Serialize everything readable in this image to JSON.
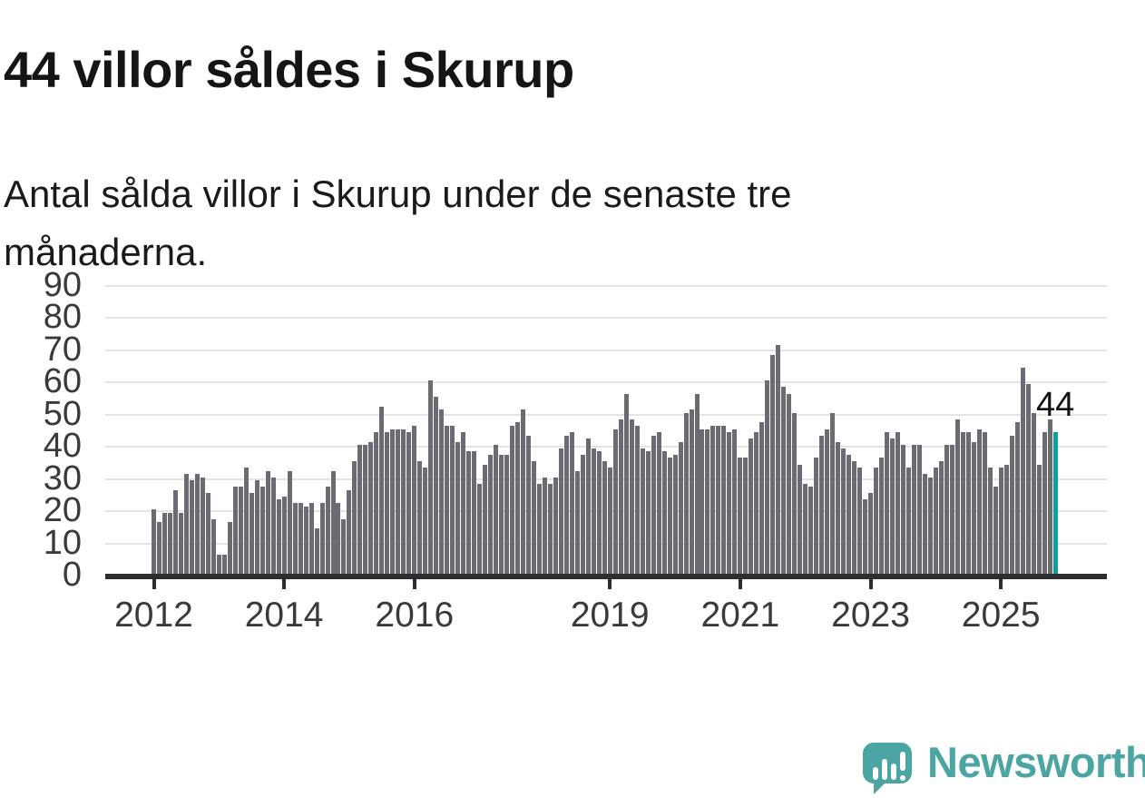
{
  "header": {
    "title": "44 villor såldes i Skurup",
    "subtitle_lines": [
      "Antal sålda villor i Skurup under de senaste tre",
      "månaderna."
    ]
  },
  "chart_data": {
    "type": "bar",
    "title": "44 villor såldes i Skurup",
    "xlabel": "",
    "ylabel": "",
    "unit": "villor (rolling 3-month count)",
    "frequency": "monthly",
    "start_month": "2012-01",
    "end_month": "2025-11",
    "ylim": [
      0,
      90
    ],
    "grid": "horizontal",
    "y_ticks": [
      0,
      10,
      20,
      30,
      40,
      50,
      60,
      70,
      80,
      90
    ],
    "x_ticks": [
      {
        "label": "2012",
        "month_index": 0
      },
      {
        "label": "2014",
        "month_index": 24
      },
      {
        "label": "2016",
        "month_index": 48
      },
      {
        "label": "2019",
        "month_index": 84
      },
      {
        "label": "2021",
        "month_index": 108
      },
      {
        "label": "2023",
        "month_index": 132
      },
      {
        "label": "2025",
        "month_index": 156
      }
    ],
    "values": [
      20,
      16,
      19,
      19,
      26,
      19,
      31,
      29,
      31,
      30,
      25,
      17,
      6,
      6,
      16,
      27,
      27,
      33,
      25,
      29,
      27,
      32,
      30,
      23,
      24,
      32,
      22,
      22,
      21,
      22,
      14,
      22,
      27,
      32,
      22,
      17,
      26,
      35,
      40,
      40,
      41,
      44,
      52,
      44,
      45,
      45,
      45,
      44,
      46,
      35,
      33,
      60,
      55,
      51,
      46,
      46,
      41,
      44,
      38,
      38,
      28,
      34,
      37,
      40,
      37,
      37,
      46,
      47,
      51,
      43,
      35,
      28,
      30,
      28,
      30,
      39,
      43,
      44,
      32,
      37,
      42,
      39,
      38,
      35,
      33,
      45,
      48,
      56,
      48,
      46,
      39,
      38,
      43,
      44,
      38,
      36,
      37,
      41,
      50,
      51,
      56,
      45,
      45,
      46,
      46,
      46,
      44,
      45,
      36,
      36,
      42,
      44,
      47,
      60,
      68,
      71,
      58,
      56,
      50,
      34,
      28,
      27,
      36,
      43,
      45,
      50,
      41,
      39,
      37,
      35,
      33,
      23,
      25,
      33,
      36,
      44,
      42,
      44,
      40,
      33,
      40,
      40,
      31,
      30,
      33,
      35,
      40,
      40,
      48,
      44,
      44,
      41,
      45,
      44,
      33,
      27,
      33,
      34,
      43,
      47,
      64,
      59,
      50,
      34,
      44,
      48,
      44
    ],
    "highlight": {
      "position": "last",
      "value": 44,
      "annotation": "44"
    },
    "colors": {
      "bar": "#6b6b73",
      "highlight": "#0f9e9e",
      "gridline": "#e4e4e4",
      "axis": "#2d2d2d",
      "label": "#3a3a3a"
    }
  },
  "annotation": {
    "label": "44"
  },
  "logo": {
    "text": "Newsworthy",
    "color": "#4aa5a3",
    "mark_color": "#4ba6a3",
    "icon": "speech-bubble-bar-chart-exclamation"
  }
}
